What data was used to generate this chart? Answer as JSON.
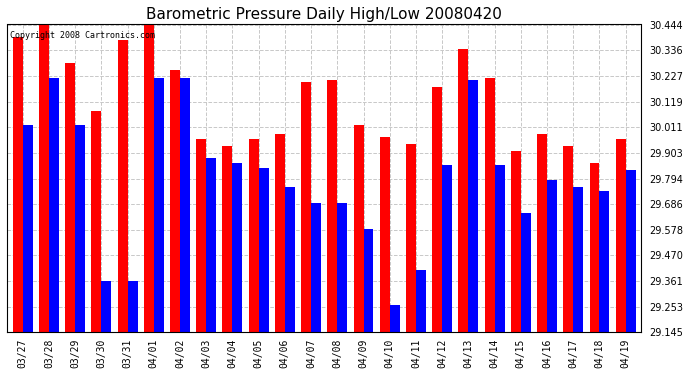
{
  "title": "Barometric Pressure Daily High/Low 20080420",
  "copyright_text": "Copyright 2008 Cartronics.com",
  "dates": [
    "03/27",
    "03/28",
    "03/29",
    "03/30",
    "03/31",
    "04/01",
    "04/02",
    "04/03",
    "04/04",
    "04/05",
    "04/06",
    "04/07",
    "04/08",
    "04/09",
    "04/10",
    "04/11",
    "04/12",
    "04/13",
    "04/14",
    "04/15",
    "04/16",
    "04/17",
    "04/18",
    "04/19"
  ],
  "highs": [
    30.39,
    30.44,
    30.28,
    30.08,
    30.38,
    30.44,
    30.25,
    29.96,
    29.93,
    29.96,
    29.98,
    30.2,
    30.21,
    30.02,
    29.97,
    29.94,
    30.18,
    30.34,
    30.22,
    29.91,
    29.98,
    29.93,
    29.86,
    29.96
  ],
  "lows": [
    30.02,
    30.22,
    30.02,
    29.36,
    29.36,
    30.22,
    30.22,
    29.88,
    29.86,
    29.84,
    29.76,
    29.69,
    29.69,
    29.58,
    29.26,
    29.41,
    29.85,
    30.21,
    29.85,
    29.65,
    29.79,
    29.76,
    29.74,
    29.83
  ],
  "ymin": 29.145,
  "ymax": 30.444,
  "yticks": [
    29.145,
    29.253,
    29.361,
    29.47,
    29.578,
    29.686,
    29.794,
    29.903,
    30.011,
    30.119,
    30.227,
    30.336,
    30.444
  ],
  "high_color": "#FF0000",
  "low_color": "#0000FF",
  "background_color": "#FFFFFF",
  "plot_bg_color": "#FFFFFF",
  "grid_color": "#C8C8C8",
  "title_fontsize": 11,
  "tick_fontsize": 7,
  "copyright_fontsize": 6,
  "bar_width": 0.38
}
